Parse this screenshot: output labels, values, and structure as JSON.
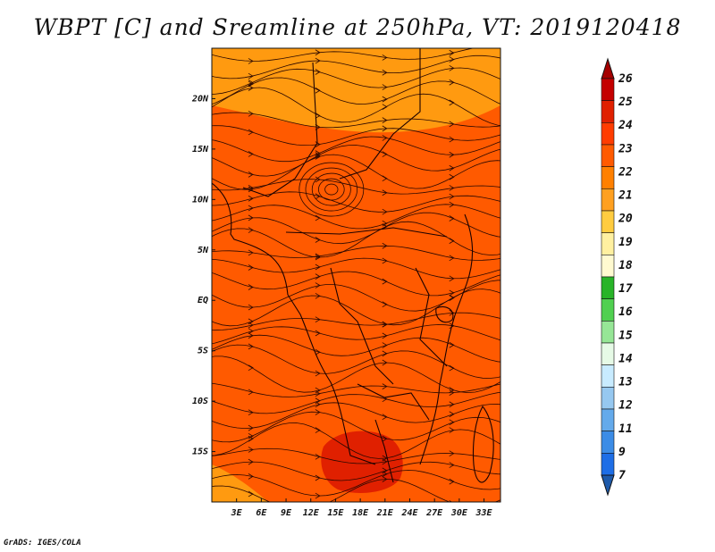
{
  "title": "WBPT [C] and Sreamline at 250hPa, VT: 2019120418",
  "credit": "GrADS: IGES/COLA",
  "map": {
    "field": "wet-bulb potential temperature",
    "background_color": "#ff5a00",
    "warm_core_color": "#e02000",
    "cooler_band_color": "#ff9a10",
    "lon_range": [
      0,
      35
    ],
    "lat_range": [
      -20,
      25
    ],
    "x_ticks": [
      "3E",
      "6E",
      "9E",
      "12E",
      "15E",
      "18E",
      "21E",
      "24E",
      "27E",
      "30E",
      "33E"
    ],
    "y_ticks": [
      "20N",
      "15N",
      "10N",
      "5N",
      "EQ",
      "5S",
      "10S",
      "15S"
    ]
  },
  "colorbar": {
    "labels": [
      "26",
      "25",
      "24",
      "23",
      "22",
      "21",
      "20",
      "19",
      "18",
      "17",
      "16",
      "15",
      "14",
      "13",
      "12",
      "11",
      "9",
      "7"
    ],
    "colors": [
      "#a50000",
      "#c40000",
      "#e02000",
      "#ff3c00",
      "#ff5a00",
      "#ff8000",
      "#ffa020",
      "#ffcc40",
      "#fff0a0",
      "#fffad0",
      "#28b428",
      "#50d050",
      "#96e696",
      "#e6fae6",
      "#c8ebff",
      "#96c8f0",
      "#64aaeb",
      "#3c8ce6",
      "#1e6ee6",
      "#1e5aaa"
    ]
  }
}
